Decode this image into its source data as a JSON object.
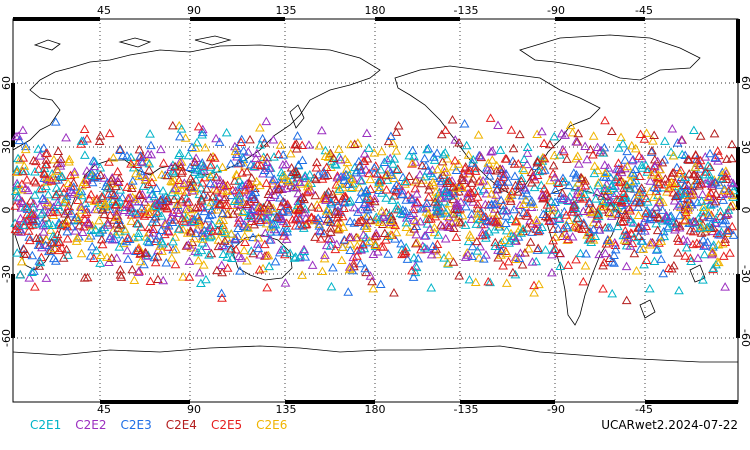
{
  "map": {
    "lon_ticks_top": [
      "45",
      "90",
      "135",
      "180",
      "-135",
      "-90",
      "-45"
    ],
    "lon_ticks_bottom": [
      "45",
      "90",
      "135",
      "180",
      "-135",
      "-90",
      "-45"
    ],
    "lat_ticks": [
      "60",
      "30",
      "0",
      "-30",
      "-60"
    ],
    "lon_values": [
      45,
      90,
      135,
      180,
      225,
      270,
      315
    ],
    "lat_values": [
      60,
      30,
      0,
      -30,
      -60
    ],
    "lon_range": [
      0,
      360
    ],
    "lat_range": [
      -90,
      90
    ],
    "marker_shape": "triangle",
    "observation_lat_band": [
      -45,
      50
    ]
  },
  "legend": {
    "items": [
      {
        "label": "C2E1",
        "color": "#00b4c8"
      },
      {
        "label": "C2E2",
        "color": "#9b2fc0"
      },
      {
        "label": "C2E3",
        "color": "#1e6ee6"
      },
      {
        "label": "C2E4",
        "color": "#b41e1e"
      },
      {
        "label": "C2E5",
        "color": "#e61e1e"
      },
      {
        "label": "C2E6",
        "color": "#f0b400"
      }
    ]
  },
  "dataset_label": "UCARwet2.2024-07-22"
}
